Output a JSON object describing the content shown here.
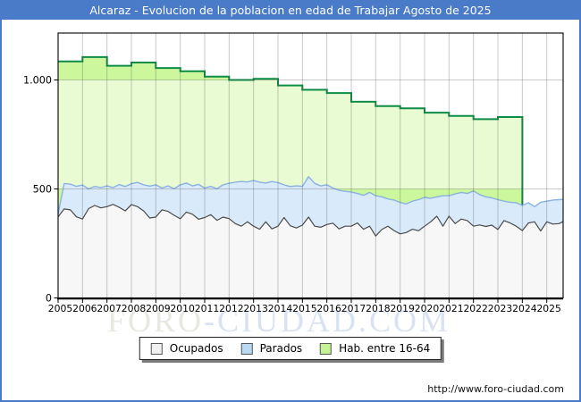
{
  "page": {
    "title": "Alcaraz - Evolucion de la poblacion en edad de Trabajar Agosto de 2025",
    "footer_url": "http://www.foro-ciudad.com",
    "watermark": {
      "part1": "FORO",
      "part2": "-CIUDAD.COM"
    }
  },
  "colors": {
    "frame_blue": "#4a7bc8",
    "plot_border": "#000000",
    "grid": "rgba(80,80,80,0.30)",
    "band_overlay": "rgba(255,255,255,0.55)",
    "hab_fill": "#ccf79d",
    "hab_line": "#0e8c45",
    "parados_fill": "#d9eafa",
    "parados_line": "#8ab2e0",
    "ocupados_fill": "#f7f7f7",
    "ocupados_line": "#4a4a4a",
    "axis_text": "#000000"
  },
  "legend": {
    "items": [
      {
        "label": "Ocupados",
        "swatch": "#f0f0f0"
      },
      {
        "label": "Parados",
        "swatch": "#b9d8f2"
      },
      {
        "label": "Hab. entre 16-64",
        "swatch": "#c3f394"
      }
    ]
  },
  "chart_data": {
    "type": "area",
    "title": "Alcaraz - Evolucion de la poblacion en edad de Trabajar Agosto de 2025",
    "grid": true,
    "legend_position": "bottom-center",
    "x_axis": {
      "tick_labels": [
        "2005",
        "2006",
        "2007",
        "2008",
        "2009",
        "2010",
        "2011",
        "2012",
        "2013",
        "2014",
        "2015",
        "2016",
        "2017",
        "2018",
        "2019",
        "2020",
        "2021",
        "2022",
        "2023",
        "2024",
        "2025"
      ],
      "start": 2005,
      "end_fraction": 2025.67
    },
    "y_axis": {
      "tick_values": [
        0,
        500,
        1000
      ],
      "tick_labels": [
        "0",
        "500",
        "1.000"
      ],
      "gridline_values": [
        500,
        1000
      ],
      "ylim": [
        0,
        1215
      ]
    },
    "series": [
      {
        "name": "Ocupados",
        "kind": "area-line",
        "x_start": 2005,
        "x_step": 0.25,
        "values": [
          372,
          408,
          404,
          372,
          362,
          410,
          424,
          413,
          419,
          429,
          416,
          399,
          428,
          419,
          399,
          367,
          371,
          404,
          397,
          379,
          363,
          394,
          384,
          361,
          369,
          382,
          356,
          371,
          364,
          341,
          329,
          349,
          329,
          315,
          349,
          317,
          329,
          369,
          331,
          321,
          334,
          371,
          329,
          324,
          337,
          343,
          317,
          329,
          329,
          344,
          315,
          329,
          284,
          314,
          329,
          309,
          294,
          300,
          315,
          308,
          329,
          349,
          375,
          329,
          375,
          341,
          362,
          355,
          329,
          335,
          328,
          334,
          314,
          355,
          344,
          329,
          309,
          344,
          349,
          307,
          349,
          339,
          341,
          350
        ]
      },
      {
        "name": "Parados",
        "kind": "area-line",
        "x_start": 2005,
        "x_step": 0.25,
        "values": [
          385,
          525,
          522,
          512,
          518,
          500,
          512,
          506,
          514,
          506,
          520,
          511,
          524,
          530,
          519,
          513,
          519,
          504,
          514,
          501,
          519,
          527,
          514,
          521,
          504,
          512,
          501,
          519,
          526,
          531,
          534,
          532,
          539,
          531,
          527,
          534,
          529,
          519,
          511,
          514,
          512,
          556,
          526,
          514,
          519,
          504,
          494,
          489,
          486,
          479,
          471,
          484,
          469,
          464,
          454,
          449,
          438,
          431,
          444,
          451,
          461,
          457,
          464,
          469,
          469,
          477,
          484,
          479,
          491,
          474,
          464,
          459,
          451,
          444,
          439,
          437,
          424,
          437,
          419,
          439,
          444,
          449,
          451,
          452
        ]
      },
      {
        "name": "Hab. entre 16-64",
        "kind": "step-area",
        "years_start": 2005,
        "annual_values": [
          1085,
          1105,
          1065,
          1080,
          1055,
          1040,
          1015,
          1000,
          1005,
          975,
          955,
          940,
          900,
          880,
          870,
          850,
          835,
          820,
          830
        ]
      }
    ]
  }
}
